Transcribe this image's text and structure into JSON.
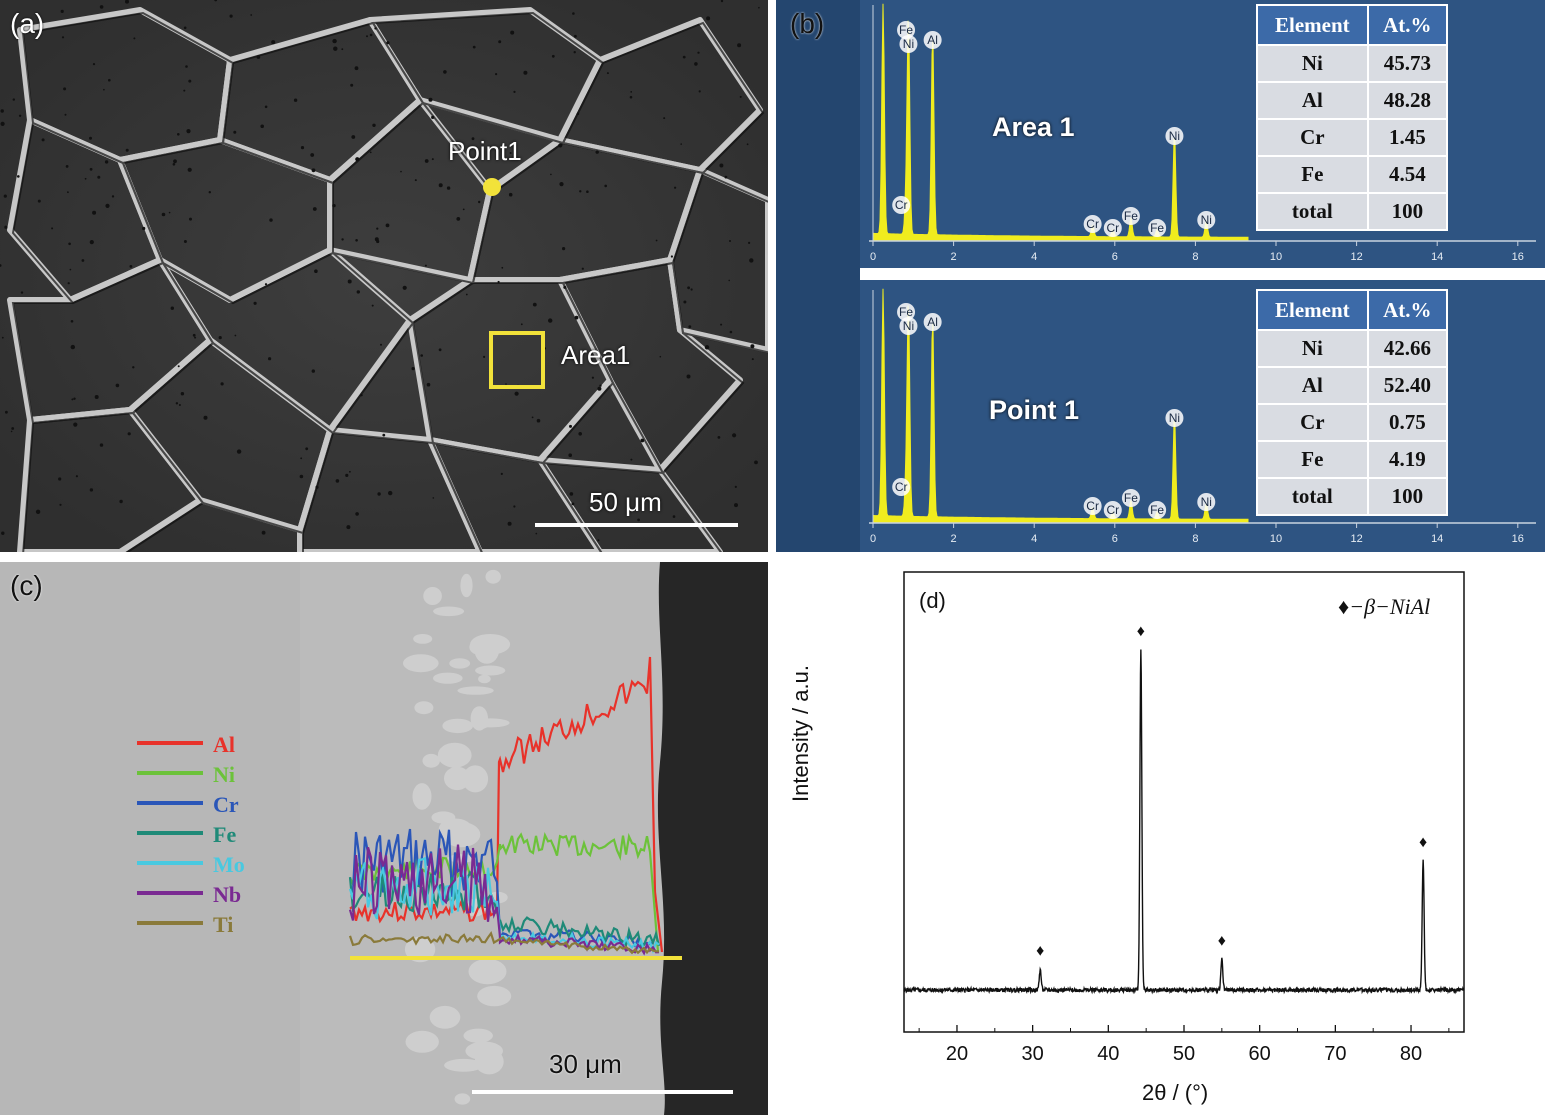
{
  "panel_a": {
    "label": "(a)",
    "point_label": "Point1",
    "area_label": "Area1",
    "scale_bar": "50 μm",
    "accent_color": "#f2e23a"
  },
  "panel_b": {
    "label": "(b)",
    "spectra": [
      {
        "title": "Area 1",
        "peak_labels": [
          "Fe",
          "Ni",
          "Al",
          "Cr",
          "Ni",
          "Cr",
          "Cr",
          "Fe",
          "Fe",
          "Ni"
        ],
        "x_ticks": [
          "0",
          "2",
          "4",
          "6",
          "8",
          "10",
          "12",
          "14",
          "16"
        ],
        "table": {
          "headers": [
            "Element",
            "At.%"
          ],
          "rows": [
            [
              "Ni",
              "45.73"
            ],
            [
              "Al",
              "48.28"
            ],
            [
              "Cr",
              "1.45"
            ],
            [
              "Fe",
              "4.54"
            ],
            [
              "total",
              "100"
            ]
          ]
        }
      },
      {
        "title": "Point 1",
        "peak_labels": [
          "Fe",
          "Ni",
          "Al",
          "Cr",
          "Ni",
          "Cr",
          "Cr",
          "Fe",
          "Fe",
          "Ni"
        ],
        "x_ticks": [
          "0",
          "2",
          "4",
          "6",
          "8",
          "10",
          "12",
          "14",
          "16"
        ],
        "table": {
          "headers": [
            "Element",
            "At.%"
          ],
          "rows": [
            [
              "Ni",
              "42.66"
            ],
            [
              "Al",
              "52.40"
            ],
            [
              "Cr",
              "0.75"
            ],
            [
              "Fe",
              "4.19"
            ],
            [
              "total",
              "100"
            ]
          ]
        }
      }
    ],
    "spectrum_color": "#f0ec1e"
  },
  "panel_c": {
    "label": "(c)",
    "scale_bar": "30 μm",
    "legend": [
      {
        "name": "Al",
        "color": "#e8322a"
      },
      {
        "name": "Ni",
        "color": "#6cc23a"
      },
      {
        "name": "Cr",
        "color": "#2a56b8"
      },
      {
        "name": "Fe",
        "color": "#1f8a78"
      },
      {
        "name": "Mo",
        "color": "#49c9e0"
      },
      {
        "name": "Nb",
        "color": "#7a2a92"
      },
      {
        "name": "Ti",
        "color": "#8a7a3a"
      }
    ],
    "scan_line_color": "#f2e23a"
  },
  "panel_d": {
    "label": "(d)",
    "legend_text": "♦−β−NiAl",
    "xlabel": "2θ / (°)",
    "ylabel": "Intensity / a.u.",
    "x_ticks": [
      "20",
      "30",
      "40",
      "50",
      "60",
      "70",
      "80"
    ]
  },
  "chart_data": [
    {
      "type": "bar",
      "categories": [
        "Ni",
        "Al",
        "Cr",
        "Fe"
      ],
      "series": [
        {
          "name": "Area 1",
          "values": [
            45.73,
            48.28,
            1.45,
            4.54
          ]
        },
        {
          "name": "Point 1",
          "values": [
            42.66,
            52.4,
            0.75,
            4.19
          ]
        }
      ],
      "xlabel": "",
      "ylabel": ""
    },
    {
      "type": "line",
      "x_range": [
        13,
        87
      ],
      "xlabel": "2θ / (°)",
      "ylabel": "Intensity / a.u.",
      "peaks": [
        {
          "x": 31.0,
          "intensity": 0.06
        },
        {
          "x": 44.3,
          "intensity": 1.0
        },
        {
          "x": 55.0,
          "intensity": 0.09
        },
        {
          "x": 81.6,
          "intensity": 0.38
        }
      ],
      "marker": "♦",
      "phase": "β−NiAl",
      "grid": false
    }
  ]
}
